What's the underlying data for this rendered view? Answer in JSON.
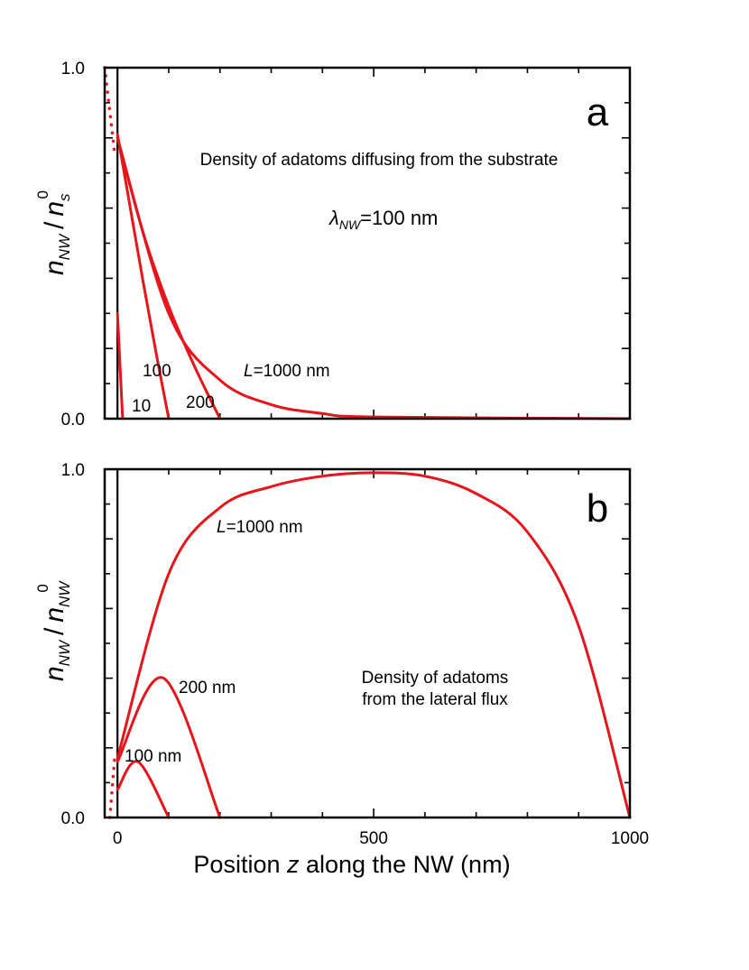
{
  "xlabel": {
    "prefix": "Position ",
    "var": "z",
    "suffix": " along the NW (nm)"
  },
  "x_ticks": [
    "0",
    "500",
    "1000"
  ],
  "chart_data": [
    {
      "type": "line",
      "panel": "a",
      "title": "Density of adatoms diffusing from the substrate",
      "ylabel": {
        "main": "n",
        "sub": "NW",
        "slash": "/",
        "den": "n",
        "den_sub": "s",
        "sup": "0"
      },
      "param": {
        "symbol": "λ",
        "sub": "NW",
        "rest": "=100 nm",
        "lambda_nm": 100
      },
      "xlim": [
        -25,
        1000
      ],
      "ylim": [
        0,
        1
      ],
      "y_ticks": [
        "0.0",
        "1.0"
      ],
      "line_color": "#e8141b",
      "series": [
        {
          "L": 10,
          "label": "10",
          "values": [
            [
              0,
              0.3
            ],
            [
              10,
              0
            ]
          ]
        },
        {
          "L": 100,
          "label": "100",
          "values": [
            [
              0,
              0.81
            ],
            [
              25,
              0.6
            ],
            [
              50,
              0.39
            ],
            [
              75,
              0.19
            ],
            [
              100,
              0
            ]
          ]
        },
        {
          "L": 200,
          "label": "200",
          "values": [
            [
              0,
              0.8
            ],
            [
              50,
              0.53
            ],
            [
              100,
              0.32
            ],
            [
              150,
              0.15
            ],
            [
              200,
              0
            ]
          ]
        },
        {
          "L": 1000,
          "label_italic": "L",
          "label": "=1000 nm",
          "values": [
            [
              0,
              0.8
            ],
            [
              100,
              0.3
            ],
            [
              200,
              0.11
            ],
            [
              300,
              0.04
            ],
            [
              400,
              0.015
            ],
            [
              500,
              0.005
            ],
            [
              1000,
              0
            ]
          ]
        },
        {
          "label": "substrate (dotted)",
          "style": "dotted",
          "values": [
            [
              -25,
              1.0
            ],
            [
              -5,
              0.75
            ]
          ]
        }
      ]
    },
    {
      "type": "line",
      "panel": "b",
      "title": "Density of adatoms\nfrom the lateral flux",
      "ylabel": {
        "main": "n",
        "sub": "NW",
        "slash": "/",
        "den": "n",
        "den_sub": "NW",
        "sup": "0"
      },
      "xlim": [
        -25,
        1000
      ],
      "ylim": [
        0,
        1
      ],
      "y_ticks": [
        "0.0",
        "1.0"
      ],
      "line_color": "#e8141b",
      "series": [
        {
          "L": 1000,
          "label_italic": "L",
          "label": "=1000 nm",
          "values": [
            [
              0,
              0.17
            ],
            [
              100,
              0.7
            ],
            [
              200,
              0.89
            ],
            [
              300,
              0.95
            ],
            [
              400,
              0.98
            ],
            [
              500,
              0.99
            ],
            [
              600,
              0.98
            ],
            [
              700,
              0.93
            ],
            [
              800,
              0.82
            ],
            [
              900,
              0.55
            ],
            [
              1000,
              0
            ]
          ]
        },
        {
          "L": 200,
          "label": "200 nm",
          "values": [
            [
              0,
              0.16
            ],
            [
              90,
              0.4
            ],
            [
              200,
              0
            ]
          ]
        },
        {
          "L": 100,
          "label": "100 nm",
          "values": [
            [
              0,
              0.08
            ],
            [
              40,
              0.16
            ],
            [
              100,
              0
            ]
          ]
        },
        {
          "label": "substrate (dotted)",
          "style": "dotted",
          "values": [
            [
              -15,
              0.0
            ],
            [
              -5,
              0.18
            ]
          ]
        }
      ]
    }
  ]
}
